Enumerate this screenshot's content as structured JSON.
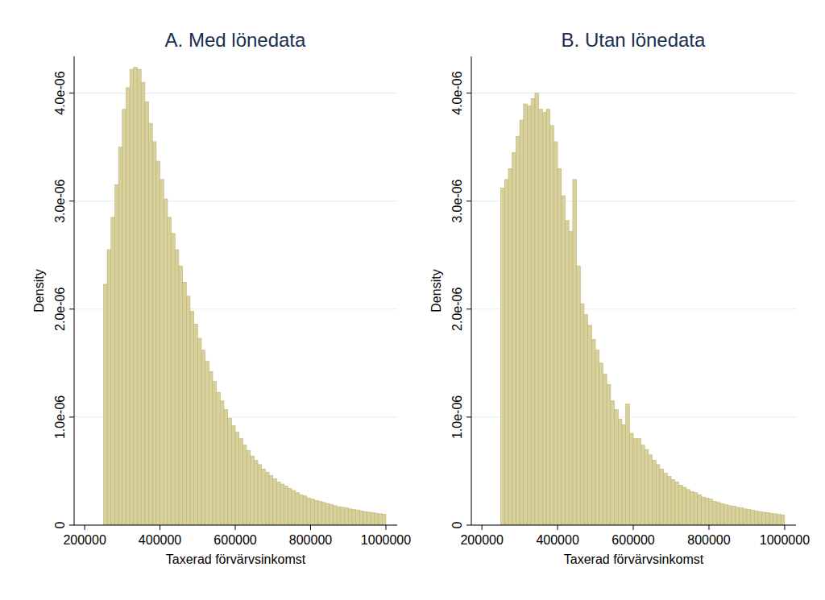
{
  "chart_data": [
    {
      "type": "histogram",
      "title": "A. Med lönedata",
      "x_label": "Taxerad förvärvsinkomst",
      "y_label": "Density",
      "color": "#d8d19b",
      "grid": true,
      "xlim": [
        172000,
        1030000
      ],
      "xticks": [
        200000,
        400000,
        600000,
        800000,
        1000000
      ],
      "ylim": [
        0,
        4.34e-06
      ],
      "yticks": [
        0,
        {
          "value": 1e-06,
          "label": "1.0e-06"
        },
        {
          "value": 2e-06,
          "label": "2.0e-06"
        },
        {
          "value": 3e-06,
          "label": "3.0e-06"
        },
        {
          "value": 4e-06,
          "label": "4.0e-06"
        }
      ],
      "bins": [
        250000,
        260000,
        270000,
        280000,
        290000,
        300000,
        310000,
        320000,
        330000,
        340000,
        350000,
        360000,
        370000,
        380000,
        390000,
        400000,
        410000,
        420000,
        430000,
        440000,
        450000,
        460000,
        470000,
        480000,
        490000,
        500000,
        510000,
        520000,
        530000,
        540000,
        550000,
        560000,
        570000,
        580000,
        590000,
        600000,
        610000,
        620000,
        630000,
        640000,
        650000,
        660000,
        670000,
        680000,
        690000,
        700000,
        710000,
        720000,
        730000,
        740000,
        750000,
        760000,
        770000,
        780000,
        790000,
        800000,
        810000,
        820000,
        830000,
        840000,
        850000,
        860000,
        870000,
        880000,
        890000,
        900000,
        910000,
        920000,
        930000,
        940000,
        950000,
        960000,
        970000,
        980000,
        990000,
        1000000
      ],
      "values": [
        2.23e-06,
        2.55e-06,
        2.85e-06,
        3.15e-06,
        3.5e-06,
        3.85e-06,
        4.05e-06,
        4.22e-06,
        4.24e-06,
        4.22e-06,
        4.1e-06,
        3.92e-06,
        3.72e-06,
        3.55e-06,
        3.37e-06,
        3.2e-06,
        3.02e-06,
        2.85e-06,
        2.7e-06,
        2.55e-06,
        2.4e-06,
        2.25e-06,
        2.12e-06,
        1.98e-06,
        1.86e-06,
        1.73e-06,
        1.62e-06,
        1.52e-06,
        1.42e-06,
        1.33e-06,
        1.23e-06,
        1.15e-06,
        1.07e-06,
        9.9e-07,
        9.2e-07,
        8.6e-07,
        8e-07,
        7.4e-07,
        6.9e-07,
        6.4e-07,
        6e-07,
        5.6e-07,
        5.2e-07,
        4.9e-07,
        4.6e-07,
        4.3e-07,
        4e-07,
        3.8e-07,
        3.6e-07,
        3.4e-07,
        3.2e-07,
        3e-07,
        2.8e-07,
        2.7e-07,
        2.5e-07,
        2.4e-07,
        2.3e-07,
        2.2e-07,
        2.1e-07,
        2e-07,
        1.9e-07,
        1.8e-07,
        1.7e-07,
        1.65e-07,
        1.6e-07,
        1.5e-07,
        1.45e-07,
        1.4e-07,
        1.3e-07,
        1.25e-07,
        1.2e-07,
        1.15e-07,
        1.1e-07,
        1.05e-07,
        1e-07
      ]
    },
    {
      "type": "histogram",
      "title": "B. Utan lönedata",
      "x_label": "Taxerad förvärvsinkomst",
      "y_label": "Density",
      "color": "#d8d19b",
      "grid": true,
      "xlim": [
        172000,
        1030000
      ],
      "xticks": [
        200000,
        400000,
        600000,
        800000,
        1000000
      ],
      "ylim": [
        0,
        4.34e-06
      ],
      "yticks": [
        0,
        {
          "value": 1e-06,
          "label": "1.0e-06"
        },
        {
          "value": 2e-06,
          "label": "2.0e-06"
        },
        {
          "value": 3e-06,
          "label": "3.0e-06"
        },
        {
          "value": 4e-06,
          "label": "4.0e-06"
        }
      ],
      "bins": [
        250000,
        260000,
        270000,
        280000,
        290000,
        300000,
        310000,
        320000,
        330000,
        340000,
        350000,
        360000,
        370000,
        380000,
        390000,
        400000,
        410000,
        420000,
        430000,
        440000,
        450000,
        460000,
        470000,
        480000,
        490000,
        500000,
        510000,
        520000,
        530000,
        540000,
        550000,
        560000,
        570000,
        580000,
        590000,
        600000,
        610000,
        620000,
        630000,
        640000,
        650000,
        660000,
        670000,
        680000,
        690000,
        700000,
        710000,
        720000,
        730000,
        740000,
        750000,
        760000,
        770000,
        780000,
        790000,
        800000,
        810000,
        820000,
        830000,
        840000,
        850000,
        860000,
        870000,
        880000,
        890000,
        900000,
        910000,
        920000,
        930000,
        940000,
        950000,
        960000,
        970000,
        980000,
        990000,
        1000000
      ],
      "values": [
        3.12e-06,
        3.2e-06,
        3.3e-06,
        3.45e-06,
        3.6e-06,
        3.75e-06,
        3.9e-06,
        3.88e-06,
        3.95e-06,
        4e-06,
        3.85e-06,
        3.82e-06,
        3.85e-06,
        3.7e-06,
        3.55e-06,
        3.3e-06,
        3.05e-06,
        2.82e-06,
        2.72e-06,
        3.2e-06,
        2.4e-06,
        2.05e-06,
        1.95e-06,
        1.85e-06,
        1.72e-06,
        1.62e-06,
        1.5e-06,
        1.4e-06,
        1.3e-06,
        1.15e-06,
        1.07e-06,
        9.8e-07,
        9.3e-07,
        1.12e-06,
        8.5e-07,
        8e-07,
        8e-07,
        7.4e-07,
        7e-07,
        6.5e-07,
        6e-07,
        5.6e-07,
        5.2e-07,
        4.8e-07,
        4.5e-07,
        4.2e-07,
        4e-07,
        3.7e-07,
        3.5e-07,
        3.3e-07,
        3.1e-07,
        3e-07,
        2.8e-07,
        2.6e-07,
        2.5e-07,
        2.4e-07,
        2.2e-07,
        2.1e-07,
        2e-07,
        1.9e-07,
        1.8e-07,
        1.75e-07,
        1.65e-07,
        1.6e-07,
        1.5e-07,
        1.45e-07,
        1.4e-07,
        1.3e-07,
        1.25e-07,
        1.2e-07,
        1.15e-07,
        1.1e-07,
        1.05e-07,
        1e-07,
        9.5e-08
      ]
    }
  ]
}
